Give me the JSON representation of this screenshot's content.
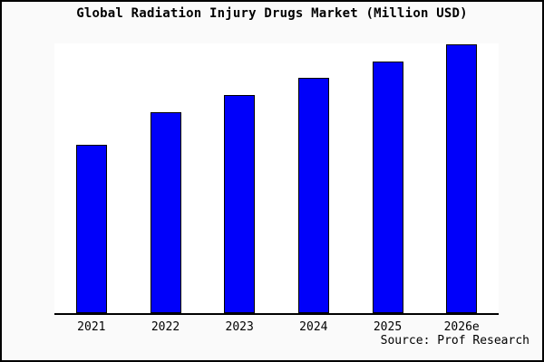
{
  "title": "Global Radiation Injury Drugs Market (Million USD)",
  "source_note": "Source: Prof Research",
  "colors": {
    "bar_fill": "#0000fa",
    "bar_border": "#000000",
    "figure_background": "#fafafa",
    "plot_background": "#ffffff",
    "axis": "#000000",
    "text": "#000000",
    "figure_border": "#000000"
  },
  "chart_data": {
    "type": "bar",
    "title": "Global Radiation Injury Drugs Market (Million USD)",
    "categories": [
      "2021",
      "2022",
      "2023",
      "2024",
      "2025",
      "2026e"
    ],
    "values": [
      62.5,
      74.9,
      81.3,
      87.6,
      93.6,
      100
    ],
    "values_note": "Y axis is unlabeled in the source image; values are relative units estimated from bar heights, normalized so 2026e = 100",
    "xlabel": "",
    "ylabel": "",
    "ylim": [
      0,
      101
    ],
    "grid": false,
    "legend": false,
    "source": "Source: Prof Research"
  }
}
